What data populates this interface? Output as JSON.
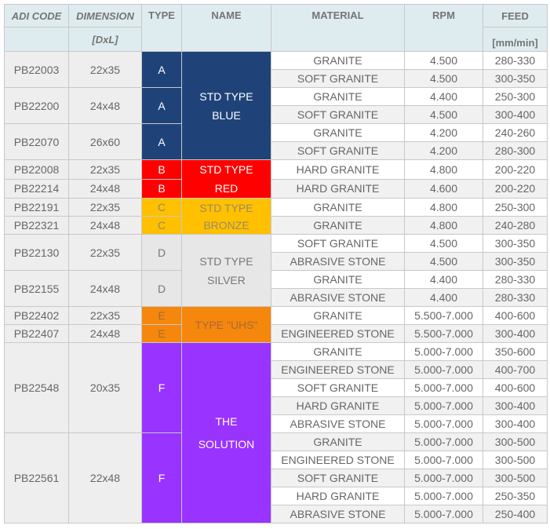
{
  "headers": {
    "adi_code": "ADI CODE",
    "dimension": "DIMENSION",
    "dimension_unit": "[DxL]",
    "type": "TYPE",
    "name": "NAME",
    "material": "MATERIAL",
    "rpm": "RPM",
    "feed": "FEED",
    "feed_unit": "[mm/min]"
  },
  "names": {
    "blue": [
      "STD TYPE",
      "BLUE"
    ],
    "red": [
      "STD TYPE",
      "RED"
    ],
    "bronze": [
      "STD TYPE",
      "BRONZE"
    ],
    "silver": [
      "STD TYPE",
      "SILVER"
    ],
    "uhs": [
      "TYPE \"UHS\""
    ],
    "solution": [
      "THE",
      "SOLUTION"
    ]
  },
  "type_colors": {
    "A": "#1f4379",
    "B": "#ff0000",
    "C": "#ffc000",
    "D": "#e7e7e7",
    "E": "#f5870c",
    "F": "#9933ff",
    "header_bg": "#dfecef"
  },
  "rows": [
    {
      "code": "PB22003",
      "dim": "22x35",
      "type": "A",
      "items": [
        {
          "material": "GRANITE",
          "rpm": "4.500",
          "feed": "280-330"
        },
        {
          "material": "SOFT GRANITE",
          "rpm": "4.500",
          "feed": "300-350"
        }
      ]
    },
    {
      "code": "PB22200",
      "dim": "24x48",
      "type": "A",
      "items": [
        {
          "material": "GRANITE",
          "rpm": "4.400",
          "feed": "250-300"
        },
        {
          "material": "SOFT GRANITE",
          "rpm": "4.500",
          "feed": "300-400"
        }
      ]
    },
    {
      "code": "PB22070",
      "dim": "26x60",
      "type": "A",
      "items": [
        {
          "material": "GRANITE",
          "rpm": "4.200",
          "feed": "240-260"
        },
        {
          "material": "SOFT GRANITE",
          "rpm": "4.200",
          "feed": "280-300"
        }
      ]
    },
    {
      "code": "PB22008",
      "dim": "22x35",
      "type": "B",
      "items": [
        {
          "material": "HARD GRANITE",
          "rpm": "4.800",
          "feed": "200-220"
        }
      ]
    },
    {
      "code": "PB22214",
      "dim": "24x48",
      "type": "B",
      "items": [
        {
          "material": "HARD GRANITE",
          "rpm": "4.600",
          "feed": "200-220"
        }
      ]
    },
    {
      "code": "PB22191",
      "dim": "22x35",
      "type": "C",
      "items": [
        {
          "material": "GRANITE",
          "rpm": "4.800",
          "feed": "250-300"
        }
      ]
    },
    {
      "code": "PB22321",
      "dim": "24x48",
      "type": "C",
      "items": [
        {
          "material": "GRANITE",
          "rpm": "4.800",
          "feed": "240-280"
        }
      ]
    },
    {
      "code": "PB22130",
      "dim": "22x35",
      "type": "D",
      "items": [
        {
          "material": "SOFT GRANITE",
          "rpm": "4.500",
          "feed": "300-350"
        },
        {
          "material": "ABRASIVE STONE",
          "rpm": "4.500",
          "feed": "300-350"
        }
      ]
    },
    {
      "code": "PB22155",
      "dim": "24x48",
      "type": "D",
      "items": [
        {
          "material": "GRANITE",
          "rpm": "4.400",
          "feed": "280-330"
        },
        {
          "material": "ABRASIVE STONE",
          "rpm": "4.400",
          "feed": "280-330"
        }
      ]
    },
    {
      "code": "PB22402",
      "dim": "22x35",
      "type": "E",
      "items": [
        {
          "material": "GRANITE",
          "rpm": "5.500-7.000",
          "feed": "400-600"
        }
      ]
    },
    {
      "code": "PB22407",
      "dim": "24x48",
      "type": "E",
      "items": [
        {
          "material": "ENGINEERED STONE",
          "rpm": "5.500-7.000",
          "feed": "300-400"
        }
      ]
    },
    {
      "code": "PB22548",
      "dim": "20x35",
      "type": "F",
      "items": [
        {
          "material": "GRANITE",
          "rpm": "5.000-7.000",
          "feed": "350-600"
        },
        {
          "material": "ENGINEERED STONE",
          "rpm": "5.000-7.000",
          "feed": "400-700"
        },
        {
          "material": "SOFT GRANITE",
          "rpm": "5.000-7.000",
          "feed": "400-600"
        },
        {
          "material": "HARD GRANITE",
          "rpm": "5.000-7.000",
          "feed": "300-400"
        },
        {
          "material": "ABRASIVE STONE",
          "rpm": "5.000-7.000",
          "feed": "300-400"
        }
      ]
    },
    {
      "code": "PB22561",
      "dim": "22x48",
      "type": "F",
      "items": [
        {
          "material": "GRANITE",
          "rpm": "5.000-7.000",
          "feed": "300-500"
        },
        {
          "material": "ENGINEERED STONE",
          "rpm": "5.000-7.000",
          "feed": "300-500"
        },
        {
          "material": "SOFT GRANITE",
          "rpm": "5.000-7.000",
          "feed": "300-500"
        },
        {
          "material": "HARD GRANITE",
          "rpm": "5.000-7.000",
          "feed": "250-350"
        },
        {
          "material": "ABRASIVE STONE",
          "rpm": "5.000-7.000",
          "feed": "250-400"
        }
      ]
    }
  ]
}
